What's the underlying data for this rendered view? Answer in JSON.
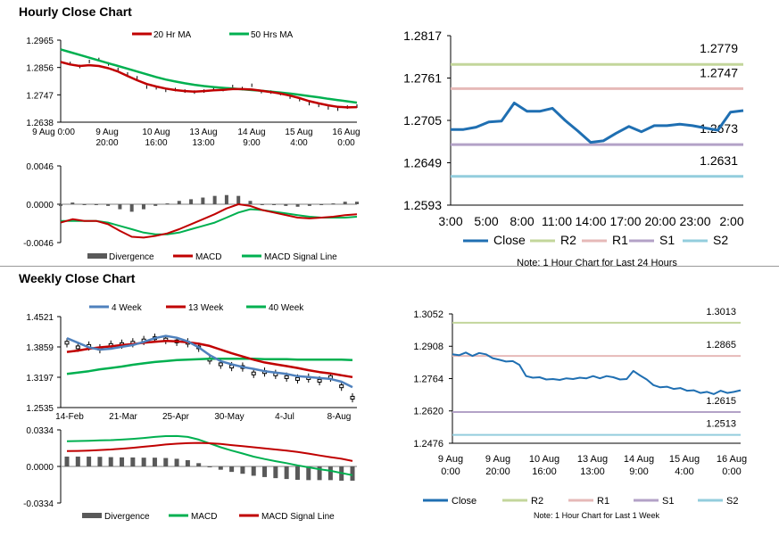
{
  "titles": {
    "hourly": "Hourly Close Chart",
    "weekly": "Weekly Close Chart"
  },
  "colors": {
    "red": "#c00000",
    "green": "#00b050",
    "blue": "#1f6fb2",
    "steel": "#4f81bd",
    "r2": "#c3d69b",
    "r1": "#e6b9b8",
    "s1": "#b3a2c7",
    "s2": "#93cddd",
    "bar": "#595959"
  },
  "chart_data": [
    {
      "id": "hourly_price",
      "type": "line",
      "y_ticks": [
        "1.2965",
        "1.2856",
        "1.2747",
        "1.2638"
      ],
      "ylim": [
        1.2638,
        1.2965
      ],
      "x_labels": [
        [
          "9 Aug 0:00"
        ],
        [
          "9 Aug",
          "20:00"
        ],
        [
          "10 Aug",
          "16:00"
        ],
        [
          "13 Aug",
          "13:00"
        ],
        [
          "14 Aug",
          "9:00"
        ],
        [
          "15 Aug",
          "4:00"
        ],
        [
          "16 Aug",
          "0:00"
        ]
      ],
      "legend": [
        "20 Hr MA",
        "50 Hrs MA"
      ],
      "series": [
        {
          "name": "Close",
          "values": [
            1.2885,
            1.2872,
            1.286,
            1.288,
            1.2888,
            1.287,
            1.2848,
            1.283,
            1.2815,
            1.2778,
            1.2775,
            1.2765,
            1.2768,
            1.2762,
            1.2758,
            1.2762,
            1.2772,
            1.2768,
            1.278,
            1.2772,
            1.2785,
            1.276,
            1.2758,
            1.2752,
            1.2738,
            1.2728,
            1.2712,
            1.2705,
            1.2695,
            1.269,
            1.2698,
            1.2702
          ]
        },
        {
          "name": "20 Hr MA",
          "values": [
            1.2878,
            1.2868,
            1.2862,
            1.2865,
            1.2862,
            1.2853,
            1.284,
            1.2822,
            1.2805,
            1.279,
            1.278,
            1.2772,
            1.2766,
            1.2762,
            1.276,
            1.2762,
            1.2765,
            1.2767,
            1.277,
            1.277,
            1.2768,
            1.2763,
            1.2758,
            1.2752,
            1.2744,
            1.2734,
            1.2722,
            1.2713,
            1.2705,
            1.2699,
            1.2697,
            1.2698
          ]
        },
        {
          "name": "50 Hrs MA",
          "values": [
            1.2928,
            1.2917,
            1.2906,
            1.2895,
            1.2884,
            1.2873,
            1.2862,
            1.2851,
            1.284,
            1.2829,
            1.2818,
            1.2808,
            1.28,
            1.2793,
            1.2787,
            1.2782,
            1.2778,
            1.2775,
            1.2772,
            1.2769,
            1.2766,
            1.2763,
            1.276,
            1.2756,
            1.2752,
            1.2747,
            1.2742,
            1.2737,
            1.2731,
            1.2726,
            1.2721,
            1.2716
          ]
        }
      ]
    },
    {
      "id": "hourly_macd",
      "type": "line",
      "y_ticks": [
        "0.0046",
        "0.0000",
        "-0.0046"
      ],
      "ylim": [
        -0.0046,
        0.0046
      ],
      "legend": [
        "Divergence",
        "MACD",
        "MACD Signal Line"
      ],
      "series": [
        {
          "name": "MACD",
          "values": [
            -0.0022,
            -0.0018,
            -0.002,
            -0.002,
            -0.0024,
            -0.0032,
            -0.0039,
            -0.004,
            -0.0038,
            -0.0035,
            -0.003,
            -0.0024,
            -0.0018,
            -0.0012,
            -0.0005,
            0.0,
            -0.0002,
            -0.0007,
            -0.001,
            -0.0013,
            -0.0016,
            -0.0017,
            -0.0016,
            -0.0015,
            -0.0013,
            -0.0012
          ]
        },
        {
          "name": "MACD Signal Line",
          "values": [
            -0.002,
            -0.002,
            -0.002,
            -0.002,
            -0.0022,
            -0.0026,
            -0.003,
            -0.0034,
            -0.0036,
            -0.0036,
            -0.0034,
            -0.003,
            -0.0026,
            -0.0022,
            -0.0016,
            -0.001,
            -0.0006,
            -0.0007,
            -0.0009,
            -0.0011,
            -0.0013,
            -0.0015,
            -0.0016,
            -0.0016,
            -0.0016,
            -0.0015
          ]
        },
        {
          "name": "Divergence",
          "values": [
            -0.0002,
            0.0002,
            0.0,
            0.0,
            -0.0002,
            -0.0006,
            -0.0009,
            -0.0006,
            -0.0002,
            0.0001,
            0.0004,
            0.0006,
            0.0008,
            0.001,
            0.0011,
            0.001,
            0.0004,
            0.0,
            -0.0001,
            -0.0002,
            -0.0003,
            -0.0002,
            0.0,
            0.0001,
            0.0003,
            0.0003
          ]
        }
      ]
    },
    {
      "id": "hourly_24h",
      "type": "line",
      "y_ticks": [
        "1.2817",
        "1.2761",
        "1.2705",
        "1.2649",
        "1.2593"
      ],
      "ylim": [
        1.2593,
        1.2817
      ],
      "x_labels": [
        "3:00",
        "5:00",
        "8:00",
        "11:00",
        "14:00",
        "17:00",
        "20:00",
        "23:00",
        "2:00"
      ],
      "levels": [
        {
          "name": "R2",
          "value": 1.2779,
          "label": "1.2779"
        },
        {
          "name": "R1",
          "value": 1.2747,
          "label": "1.2747"
        },
        {
          "name": "S1",
          "value": 1.2673,
          "label": "1.2673"
        },
        {
          "name": "S2",
          "value": 1.2631,
          "label": "1.2631"
        }
      ],
      "legend": [
        "Close",
        "R2",
        "R1",
        "S1",
        "S2"
      ],
      "note": "Note: 1 Hour Chart for Last 24 Hours",
      "series": [
        {
          "name": "Close",
          "values": [
            1.2693,
            1.2693,
            1.2696,
            1.2703,
            1.2704,
            1.2728,
            1.2717,
            1.2717,
            1.2721,
            1.2705,
            1.2691,
            1.2676,
            1.2678,
            1.2688,
            1.2697,
            1.269,
            1.2698,
            1.2698,
            1.27,
            1.2698,
            1.2695,
            1.2692,
            1.2716,
            1.2718
          ]
        }
      ]
    },
    {
      "id": "weekly_price",
      "type": "line",
      "y_ticks": [
        "1.4521",
        "1.3859",
        "1.3197",
        "1.2535"
      ],
      "ylim": [
        1.2535,
        1.4521
      ],
      "x_labels": [
        "14-Feb",
        "21-Mar",
        "25-Apr",
        "30-May",
        "4-Jul",
        "8-Aug"
      ],
      "legend": [
        "4 Week",
        "13 Week",
        "40 Week"
      ],
      "series": [
        {
          "name": "Close",
          "values": [
            1.395,
            1.385,
            1.388,
            1.382,
            1.39,
            1.392,
            1.395,
            1.4,
            1.405,
            1.402,
            1.398,
            1.395,
            1.385,
            1.358,
            1.348,
            1.343,
            1.342,
            1.328,
            1.331,
            1.326,
            1.32,
            1.316,
            1.318,
            1.312,
            1.32,
            1.3,
            1.275
          ]
        },
        {
          "name": "4 Week",
          "values": [
            1.405,
            1.395,
            1.385,
            1.38,
            1.382,
            1.386,
            1.39,
            1.397,
            1.405,
            1.41,
            1.406,
            1.398,
            1.385,
            1.368,
            1.355,
            1.348,
            1.342,
            1.338,
            1.333,
            1.33,
            1.327,
            1.322,
            1.32,
            1.318,
            1.316,
            1.31,
            1.298
          ]
        },
        {
          "name": "13 Week",
          "values": [
            1.375,
            1.378,
            1.382,
            1.385,
            1.387,
            1.39,
            1.392,
            1.395,
            1.397,
            1.399,
            1.398,
            1.396,
            1.393,
            1.388,
            1.38,
            1.372,
            1.365,
            1.358,
            1.352,
            1.348,
            1.344,
            1.34,
            1.335,
            1.331,
            1.328,
            1.324,
            1.32
          ]
        },
        {
          "name": "40 Week",
          "values": [
            1.327,
            1.33,
            1.333,
            1.337,
            1.34,
            1.343,
            1.347,
            1.35,
            1.353,
            1.355,
            1.357,
            1.358,
            1.359,
            1.36,
            1.36,
            1.36,
            1.36,
            1.36,
            1.359,
            1.359,
            1.359,
            1.358,
            1.358,
            1.358,
            1.358,
            1.358,
            1.357
          ]
        }
      ]
    },
    {
      "id": "weekly_macd",
      "type": "line",
      "y_ticks": [
        "0.0334",
        "0.0000",
        "-0.0334"
      ],
      "ylim": [
        -0.0334,
        0.0334
      ],
      "legend": [
        "Divergence",
        "MACD",
        "MACD Signal Line"
      ],
      "series": [
        {
          "name": "MACD",
          "values": [
            0.023,
            0.0232,
            0.0235,
            0.0238,
            0.024,
            0.0245,
            0.0252,
            0.026,
            0.027,
            0.0277,
            0.0278,
            0.027,
            0.0245,
            0.021,
            0.0175,
            0.0145,
            0.0118,
            0.009,
            0.0068,
            0.0048,
            0.003,
            0.001,
            -0.0008,
            -0.0025,
            -0.004,
            -0.006,
            -0.008
          ]
        },
        {
          "name": "MACD Signal Line",
          "values": [
            0.014,
            0.0142,
            0.0145,
            0.015,
            0.0155,
            0.0162,
            0.017,
            0.018,
            0.019,
            0.02,
            0.0208,
            0.0213,
            0.0215,
            0.0212,
            0.0205,
            0.0195,
            0.0185,
            0.0175,
            0.0165,
            0.0155,
            0.0145,
            0.0132,
            0.0117,
            0.01,
            0.0085,
            0.007,
            0.005
          ]
        },
        {
          "name": "Divergence",
          "values": [
            0.009,
            0.009,
            0.009,
            0.0088,
            0.0085,
            0.0083,
            0.0082,
            0.008,
            0.008,
            0.0077,
            0.007,
            0.0057,
            0.003,
            -0.0002,
            -0.003,
            -0.005,
            -0.0067,
            -0.0085,
            -0.0097,
            -0.0107,
            -0.0115,
            -0.0122,
            -0.0125,
            -0.0125,
            -0.0125,
            -0.013,
            -0.013
          ]
        }
      ]
    },
    {
      "id": "weekly_1w",
      "type": "line",
      "y_ticks": [
        "1.3052",
        "1.2908",
        "1.2764",
        "1.2620",
        "1.2476"
      ],
      "ylim": [
        1.2476,
        1.3052
      ],
      "x_labels": [
        [
          "9 Aug",
          "0:00"
        ],
        [
          "9 Aug",
          "20:00"
        ],
        [
          "10 Aug",
          "16:00"
        ],
        [
          "13 Aug",
          "13:00"
        ],
        [
          "14 Aug",
          "9:00"
        ],
        [
          "15 Aug",
          "4:00"
        ],
        [
          "16 Aug",
          "0:00"
        ]
      ],
      "levels": [
        {
          "name": "R2",
          "value": 1.3013,
          "label": "1.3013"
        },
        {
          "name": "R1",
          "value": 1.2865,
          "label": "1.2865"
        },
        {
          "name": "S1",
          "value": 1.2615,
          "label": "1.2615"
        },
        {
          "name": "S2",
          "value": 1.2513,
          "label": "1.2513"
        }
      ],
      "legend": [
        "Close",
        "R2",
        "R1",
        "S1",
        "S2"
      ],
      "note": "Note: 1 Hour Chart for Last 1 Week",
      "series": [
        {
          "name": "Close",
          "values": [
            1.2872,
            1.2868,
            1.288,
            1.2865,
            1.2878,
            1.2872,
            1.2855,
            1.2848,
            1.284,
            1.2842,
            1.2825,
            1.2775,
            1.2768,
            1.277,
            1.276,
            1.2762,
            1.2758,
            1.2765,
            1.2762,
            1.2768,
            1.2765,
            1.2775,
            1.2765,
            1.2775,
            1.277,
            1.276,
            1.2762,
            1.2798,
            1.2778,
            1.276,
            1.2735,
            1.2725,
            1.2728,
            1.2718,
            1.2722,
            1.271,
            1.2712,
            1.27,
            1.2705,
            1.2695,
            1.271,
            1.27,
            1.2705,
            1.2712
          ]
        }
      ]
    }
  ]
}
